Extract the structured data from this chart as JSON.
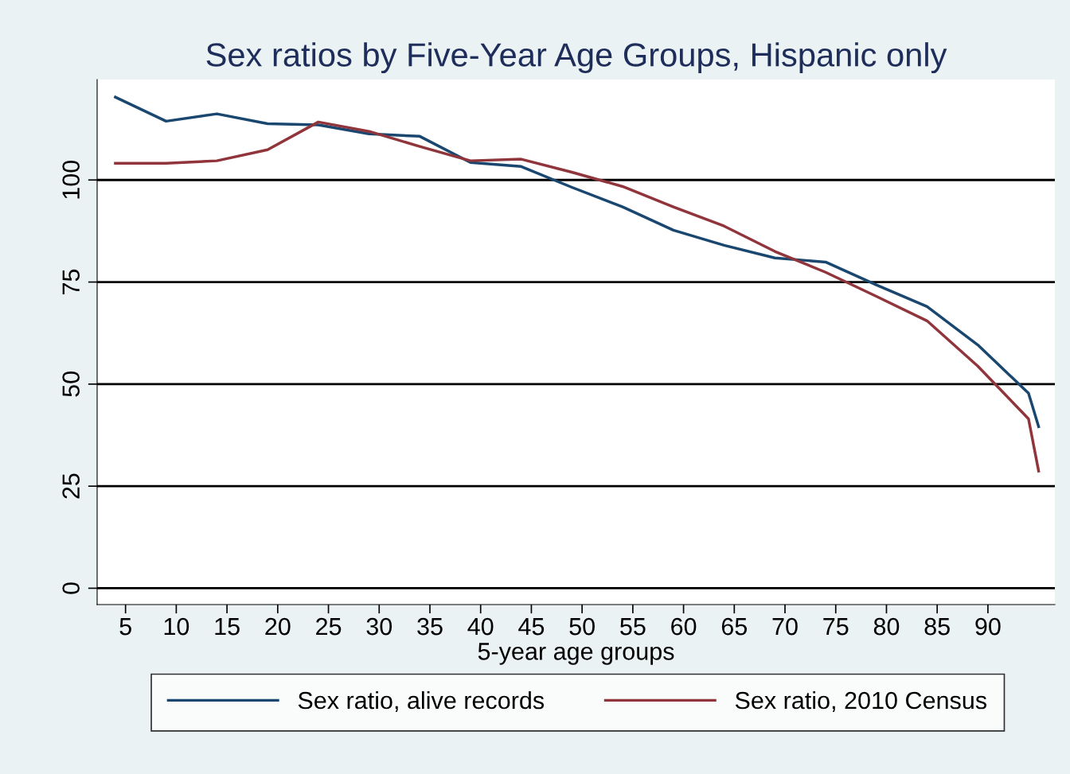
{
  "chart_data": {
    "type": "line",
    "title": "Sex ratios by Five-Year Age Groups, Hispanic only",
    "xlabel": "5-year age groups",
    "x": [
      4,
      9,
      14,
      19,
      24,
      29,
      34,
      39,
      44,
      49,
      54,
      59,
      64,
      69,
      74,
      79,
      84,
      89,
      94,
      95
    ],
    "series": [
      {
        "name": "Sex ratio, alive records",
        "color": "#1a476f",
        "values": [
          120.3,
          114.4,
          116.2,
          113.8,
          113.5,
          111.3,
          110.7,
          104.3,
          103.3,
          98.2,
          93.4,
          87.7,
          84.0,
          80.9,
          79.9,
          74.3,
          69.0,
          59.6,
          47.8,
          39.6
        ]
      },
      {
        "name": "Sex ratio, 2010 Census",
        "color": "#90353b",
        "values": [
          104.1,
          104.1,
          104.7,
          107.4,
          114.2,
          111.9,
          108.2,
          104.7,
          105.1,
          101.9,
          98.4,
          93.4,
          88.7,
          82.5,
          77.4,
          71.5,
          65.5,
          54.4,
          41.5,
          28.7
        ]
      }
    ],
    "xlim": [
      2.2,
      96.6
    ],
    "xticks": [
      5,
      10,
      15,
      20,
      25,
      30,
      35,
      40,
      45,
      50,
      55,
      60,
      65,
      70,
      75,
      80,
      85,
      90
    ],
    "ylim": [
      -4,
      124.6
    ],
    "yticks": [
      0,
      25,
      50,
      75,
      100
    ],
    "grid": "y",
    "legend": "bottom"
  }
}
